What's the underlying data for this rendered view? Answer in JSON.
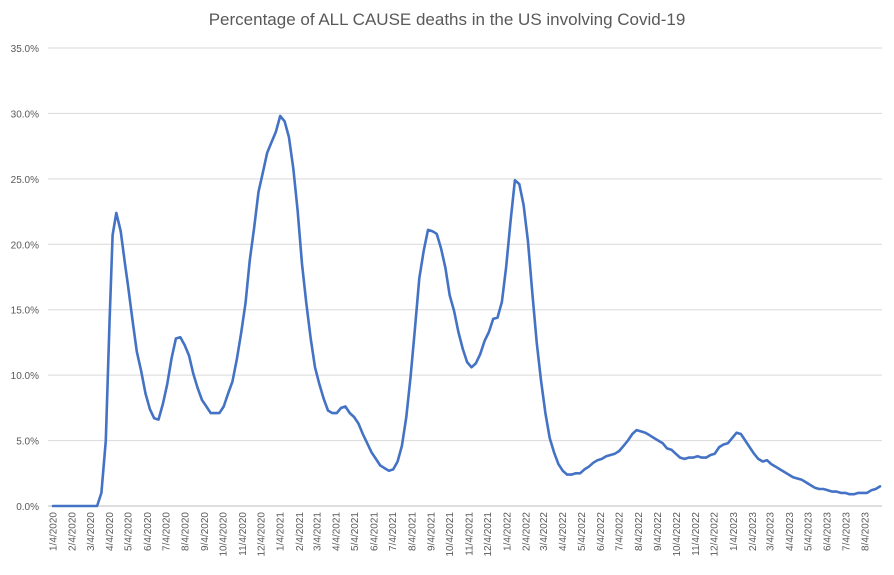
{
  "chart_data": {
    "type": "line",
    "title": "Percentage of ALL CAUSE deaths in the US involving Covid-19",
    "xlabel": "",
    "ylabel": "",
    "ylim": [
      0,
      35
    ],
    "y_ticks": [
      "0.0%",
      "5.0%",
      "10.0%",
      "15.0%",
      "20.0%",
      "25.0%",
      "30.0%",
      "35.0%"
    ],
    "x_tick_labels": [
      "1/4/2020",
      "2/4/2020",
      "3/4/2020",
      "4/4/2020",
      "5/4/2020",
      "6/4/2020",
      "7/4/2020",
      "8/4/2020",
      "9/4/2020",
      "10/4/2020",
      "11/4/2020",
      "12/4/2020",
      "1/4/2021",
      "2/4/2021",
      "3/4/2021",
      "4/4/2021",
      "5/4/2021",
      "6/4/2021",
      "7/4/2021",
      "8/4/2021",
      "9/4/2021",
      "10/4/2021",
      "11/4/2021",
      "12/4/2021",
      "1/4/2022",
      "2/4/2022",
      "3/4/2022",
      "4/4/2022",
      "5/4/2022",
      "6/4/2022",
      "7/4/2022",
      "8/4/2022",
      "9/4/2022",
      "10/4/2022",
      "11/4/2022",
      "12/4/2022",
      "1/4/2023",
      "2/4/2023",
      "3/4/2023",
      "4/4/2023",
      "5/4/2023",
      "6/4/2023",
      "7/4/2023",
      "8/4/2023"
    ],
    "grid": true,
    "line_color": "#4472c4",
    "series": [
      {
        "name": "",
        "points": [
          [
            "1/4/2020",
            0.0
          ],
          [
            "2/4/2020",
            0.0
          ],
          [
            "3/4/2020",
            0.0
          ],
          [
            "3/15/2020",
            0.0
          ],
          [
            "3/22/2020",
            1.0
          ],
          [
            "3/29/2020",
            5.0
          ],
          [
            "4/4/2020",
            14.0
          ],
          [
            "4/9/2020",
            20.7
          ],
          [
            "4/15/2020",
            22.4
          ],
          [
            "4/22/2020",
            21.0
          ],
          [
            "4/29/2020",
            18.5
          ],
          [
            "5/4/2020",
            16.8
          ],
          [
            "5/11/2020",
            14.2
          ],
          [
            "5/18/2020",
            11.8
          ],
          [
            "5/25/2020",
            10.3
          ],
          [
            "6/1/2020",
            8.6
          ],
          [
            "6/8/2020",
            7.4
          ],
          [
            "6/15/2020",
            6.7
          ],
          [
            "6/22/2020",
            6.6
          ],
          [
            "6/29/2020",
            7.8
          ],
          [
            "7/6/2020",
            9.3
          ],
          [
            "7/13/2020",
            11.3
          ],
          [
            "7/20/2020",
            12.8
          ],
          [
            "7/27/2020",
            12.9
          ],
          [
            "8/3/2020",
            12.3
          ],
          [
            "8/10/2020",
            11.5
          ],
          [
            "8/17/2020",
            10.1
          ],
          [
            "8/24/2020",
            9.0
          ],
          [
            "8/31/2020",
            8.1
          ],
          [
            "9/7/2020",
            7.6
          ],
          [
            "9/14/2020",
            7.1
          ],
          [
            "9/21/2020",
            7.1
          ],
          [
            "9/28/2020",
            7.1
          ],
          [
            "10/5/2020",
            7.6
          ],
          [
            "10/12/2020",
            8.6
          ],
          [
            "10/19/2020",
            9.5
          ],
          [
            "10/26/2020",
            11.2
          ],
          [
            "11/2/2020",
            13.2
          ],
          [
            "11/9/2020",
            15.5
          ],
          [
            "11/16/2020",
            18.8
          ],
          [
            "11/23/2020",
            21.3
          ],
          [
            "11/30/2020",
            24.0
          ],
          [
            "12/7/2020",
            25.5
          ],
          [
            "12/14/2020",
            27.0
          ],
          [
            "12/21/2020",
            27.8
          ],
          [
            "12/28/2020",
            28.6
          ],
          [
            "1/4/2021",
            29.8
          ],
          [
            "1/11/2021",
            29.4
          ],
          [
            "1/18/2021",
            28.2
          ],
          [
            "1/25/2021",
            25.8
          ],
          [
            "2/1/2021",
            22.6
          ],
          [
            "2/8/2021",
            18.5
          ],
          [
            "2/15/2021",
            15.5
          ],
          [
            "2/22/2021",
            12.8
          ],
          [
            "3/1/2021",
            10.6
          ],
          [
            "3/8/2021",
            9.3
          ],
          [
            "3/15/2021",
            8.2
          ],
          [
            "3/22/2021",
            7.3
          ],
          [
            "3/29/2021",
            7.1
          ],
          [
            "4/5/2021",
            7.1
          ],
          [
            "4/12/2021",
            7.5
          ],
          [
            "4/19/2021",
            7.6
          ],
          [
            "4/26/2021",
            7.1
          ],
          [
            "5/3/2021",
            6.8
          ],
          [
            "5/10/2021",
            6.3
          ],
          [
            "5/17/2021",
            5.5
          ],
          [
            "5/24/2021",
            4.8
          ],
          [
            "5/31/2021",
            4.1
          ],
          [
            "6/7/2021",
            3.6
          ],
          [
            "6/14/2021",
            3.1
          ],
          [
            "6/21/2021",
            2.9
          ],
          [
            "6/28/2021",
            2.7
          ],
          [
            "7/5/2021",
            2.8
          ],
          [
            "7/12/2021",
            3.4
          ],
          [
            "7/19/2021",
            4.6
          ],
          [
            "7/26/2021",
            6.8
          ],
          [
            "8/2/2021",
            9.9
          ],
          [
            "8/9/2021",
            13.6
          ],
          [
            "8/16/2021",
            17.4
          ],
          [
            "8/23/2021",
            19.5
          ],
          [
            "8/30/2021",
            21.1
          ],
          [
            "9/6/2021",
            21.0
          ],
          [
            "9/13/2021",
            20.8
          ],
          [
            "9/20/2021",
            19.7
          ],
          [
            "9/27/2021",
            18.2
          ],
          [
            "10/4/2021",
            16.1
          ],
          [
            "10/11/2021",
            14.9
          ],
          [
            "10/18/2021",
            13.3
          ],
          [
            "10/25/2021",
            12.0
          ],
          [
            "11/1/2021",
            11.0
          ],
          [
            "11/8/2021",
            10.6
          ],
          [
            "11/15/2021",
            10.9
          ],
          [
            "11/22/2021",
            11.6
          ],
          [
            "11/29/2021",
            12.6
          ],
          [
            "12/6/2021",
            13.3
          ],
          [
            "12/13/2021",
            14.3
          ],
          [
            "12/20/2021",
            14.4
          ],
          [
            "12/27/2021",
            15.6
          ],
          [
            "1/3/2022",
            18.3
          ],
          [
            "1/10/2022",
            21.8
          ],
          [
            "1/17/2022",
            24.9
          ],
          [
            "1/24/2022",
            24.6
          ],
          [
            "1/31/2022",
            23.0
          ],
          [
            "2/7/2022",
            20.2
          ],
          [
            "2/14/2022",
            16.3
          ],
          [
            "2/21/2022",
            12.5
          ],
          [
            "2/28/2022",
            9.6
          ],
          [
            "3/7/2022",
            7.1
          ],
          [
            "3/14/2022",
            5.2
          ],
          [
            "3/21/2022",
            4.1
          ],
          [
            "3/28/2022",
            3.2
          ],
          [
            "4/4/2022",
            2.7
          ],
          [
            "4/11/2022",
            2.4
          ],
          [
            "4/18/2022",
            2.4
          ],
          [
            "4/25/2022",
            2.5
          ],
          [
            "5/2/2022",
            2.5
          ],
          [
            "5/9/2022",
            2.8
          ],
          [
            "5/16/2022",
            3.0
          ],
          [
            "5/23/2022",
            3.3
          ],
          [
            "5/30/2022",
            3.5
          ],
          [
            "6/6/2022",
            3.6
          ],
          [
            "6/13/2022",
            3.8
          ],
          [
            "6/20/2022",
            3.9
          ],
          [
            "6/27/2022",
            4.0
          ],
          [
            "7/4/2022",
            4.2
          ],
          [
            "7/11/2022",
            4.6
          ],
          [
            "7/18/2022",
            5.0
          ],
          [
            "7/25/2022",
            5.5
          ],
          [
            "8/1/2022",
            5.8
          ],
          [
            "8/8/2022",
            5.7
          ],
          [
            "8/15/2022",
            5.6
          ],
          [
            "8/22/2022",
            5.4
          ],
          [
            "8/29/2022",
            5.2
          ],
          [
            "9/5/2022",
            5.0
          ],
          [
            "9/12/2022",
            4.8
          ],
          [
            "9/19/2022",
            4.4
          ],
          [
            "9/26/2022",
            4.3
          ],
          [
            "10/3/2022",
            4.0
          ],
          [
            "10/10/2022",
            3.7
          ],
          [
            "10/17/2022",
            3.6
          ],
          [
            "10/24/2022",
            3.7
          ],
          [
            "10/31/2022",
            3.7
          ],
          [
            "11/7/2022",
            3.8
          ],
          [
            "11/14/2022",
            3.7
          ],
          [
            "11/21/2022",
            3.7
          ],
          [
            "11/28/2022",
            3.9
          ],
          [
            "12/5/2022",
            4.0
          ],
          [
            "12/12/2022",
            4.5
          ],
          [
            "12/19/2022",
            4.7
          ],
          [
            "12/26/2022",
            4.8
          ],
          [
            "1/2/2023",
            5.2
          ],
          [
            "1/9/2023",
            5.6
          ],
          [
            "1/16/2023",
            5.5
          ],
          [
            "1/23/2023",
            5.0
          ],
          [
            "1/30/2023",
            4.5
          ],
          [
            "2/6/2023",
            4.0
          ],
          [
            "2/13/2023",
            3.6
          ],
          [
            "2/20/2023",
            3.4
          ],
          [
            "2/27/2023",
            3.5
          ],
          [
            "3/6/2023",
            3.2
          ],
          [
            "3/13/2023",
            3.0
          ],
          [
            "3/20/2023",
            2.8
          ],
          [
            "3/27/2023",
            2.6
          ],
          [
            "4/3/2023",
            2.4
          ],
          [
            "4/10/2023",
            2.2
          ],
          [
            "4/17/2023",
            2.1
          ],
          [
            "4/24/2023",
            2.0
          ],
          [
            "5/1/2023",
            1.8
          ],
          [
            "5/8/2023",
            1.6
          ],
          [
            "5/15/2023",
            1.4
          ],
          [
            "5/22/2023",
            1.3
          ],
          [
            "5/29/2023",
            1.3
          ],
          [
            "6/5/2023",
            1.2
          ],
          [
            "6/12/2023",
            1.1
          ],
          [
            "6/19/2023",
            1.1
          ],
          [
            "6/26/2023",
            1.0
          ],
          [
            "7/3/2023",
            1.0
          ],
          [
            "7/10/2023",
            0.9
          ],
          [
            "7/17/2023",
            0.9
          ],
          [
            "7/24/2023",
            1.0
          ],
          [
            "7/31/2023",
            1.0
          ],
          [
            "8/7/2023",
            1.0
          ],
          [
            "8/14/2023",
            1.2
          ],
          [
            "8/21/2023",
            1.3
          ],
          [
            "8/28/2023",
            1.5
          ]
        ]
      }
    ]
  }
}
